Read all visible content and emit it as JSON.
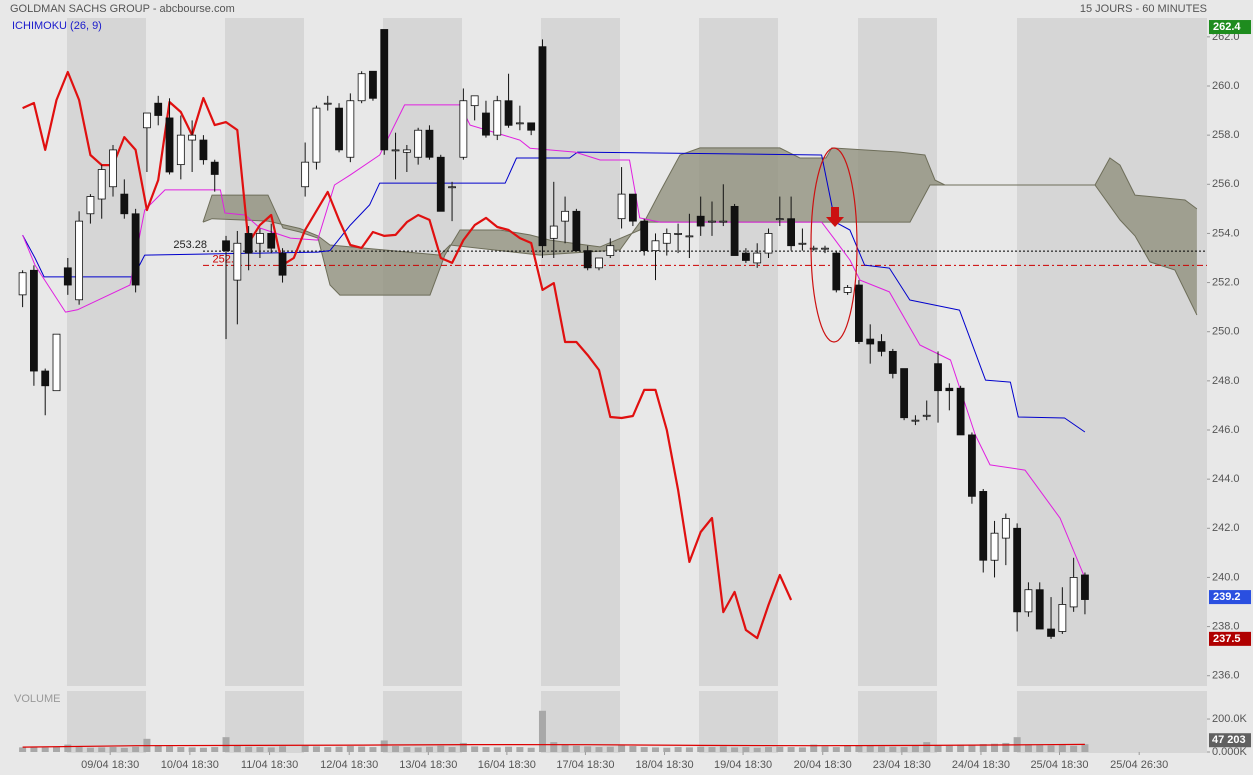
{
  "chart_data": {
    "type": "candlestick",
    "title": "GOLDMAN SACHS GROUP - abcbourse.com",
    "period": "15 JOURS - 60 MINUTES",
    "indicator": "ICHIMOKU (26, 9)",
    "candles": {
      "up_color": "#ffffff",
      "down_color": "#111111",
      "x": [
        0,
        1,
        2,
        3,
        4,
        5,
        6,
        7,
        8,
        9,
        10,
        11,
        12,
        13,
        14,
        15,
        16,
        17,
        18,
        19,
        20,
        21,
        22,
        23,
        25,
        26,
        27,
        28,
        29,
        30,
        31,
        32,
        33,
        34,
        35,
        36,
        37,
        38,
        39,
        40,
        41,
        42,
        43,
        44,
        45,
        46,
        47,
        48,
        49,
        50,
        51,
        52,
        53,
        54,
        55,
        56,
        57,
        58,
        59,
        60,
        61,
        62,
        63,
        64,
        65,
        66,
        67,
        68,
        69,
        70,
        71,
        72,
        73,
        74,
        75,
        76,
        77,
        78,
        79,
        80,
        81,
        82,
        83,
        84,
        85,
        86,
        87,
        88,
        89,
        90,
        91,
        92,
        93,
        94
      ],
      "open": [
        251.5,
        252.5,
        248.4,
        247.6,
        252.6,
        251.3,
        254.8,
        255.4,
        255.9,
        255.6,
        254.8,
        258.3,
        259.3,
        258.7,
        256.8,
        257.8,
        257.8,
        256.9,
        253.7,
        252.1,
        254,
        253.6,
        254,
        253.2,
        255.9,
        256.9,
        259.3,
        259.1,
        257.1,
        259.4,
        260.6,
        262.3,
        257.4,
        257.3,
        257.1,
        258.2,
        257.1,
        255.9,
        257.1,
        259.2,
        258.9,
        258,
        259.4,
        258.5,
        258.5,
        261.6,
        253.8,
        254.5,
        254.9,
        253.3,
        252.6,
        253.1,
        254.6,
        255.6,
        254.5,
        253.3,
        253.6,
        254,
        253.9,
        254.7,
        254.5,
        254.5,
        255.1,
        253.2,
        252.8,
        253.2,
        254.6,
        254.6,
        253.6,
        253.4,
        253.4,
        253.2,
        251.6,
        251.9,
        249.7,
        249.6,
        249.2,
        248.5,
        246.4,
        246.6,
        248.7,
        247.7,
        247.7,
        245.8,
        243.5,
        240.7,
        241.6,
        242,
        238.6,
        239.5,
        237.9,
        237.8,
        238.8,
        240.1
      ],
      "high": [
        252.5,
        252.7,
        248.5,
        249.9,
        253,
        254.9,
        255.6,
        256.8,
        257.6,
        256.2,
        255,
        258.9,
        259.6,
        259.5,
        258.8,
        258.6,
        258,
        257,
        253.9,
        254.1,
        254.3,
        254.2,
        254.4,
        253.4,
        257.7,
        259.2,
        259.6,
        259.3,
        259.7,
        260.6,
        260.6,
        262.3,
        258.1,
        257.6,
        258.3,
        258.4,
        257.2,
        256.1,
        259.9,
        259.6,
        259.4,
        259.6,
        260.5,
        259.2,
        258.5,
        261.9,
        256.1,
        255.5,
        255,
        253.5,
        252.8,
        253.8,
        256.7,
        255.6,
        254.6,
        254,
        254.2,
        254.4,
        254.8,
        255.5,
        255.3,
        256,
        255.2,
        253.4,
        253.6,
        254.2,
        255.5,
        255.5,
        254.2,
        253.5,
        253.5,
        253.3,
        251.9,
        252.1,
        250.3,
        249.9,
        249.3,
        248.5,
        246.6,
        247.2,
        249.2,
        247.9,
        247.8,
        245.9,
        243.6,
        242.3,
        242.6,
        242.2,
        239.8,
        239.8,
        239.2,
        239.6,
        240.8,
        240.2
      ],
      "low": [
        251,
        247.8,
        246.6,
        247.6,
        251.5,
        251.1,
        254.4,
        254.6,
        255.5,
        254.6,
        251.6,
        256.5,
        258.4,
        256.4,
        256.2,
        256.5,
        256.8,
        255.7,
        249.7,
        250.3,
        252.5,
        253,
        253.2,
        252,
        255.5,
        256.6,
        259,
        257.3,
        256.9,
        259.3,
        259.4,
        257.2,
        256.2,
        256.5,
        256.8,
        257,
        254.9,
        254.5,
        257,
        258.6,
        257.9,
        257.8,
        258.3,
        258.2,
        258,
        253,
        253,
        253.6,
        253.3,
        252.5,
        252.5,
        253,
        254.2,
        254.3,
        253.1,
        252.1,
        253.1,
        253.2,
        253,
        253.9,
        253.9,
        254.3,
        253.1,
        252.8,
        252.6,
        253,
        254.3,
        253.3,
        253.3,
        253.3,
        253.2,
        251.6,
        251.5,
        249.5,
        248.7,
        249,
        248.1,
        246.4,
        246.2,
        246.4,
        246.3,
        246.8,
        245.8,
        243,
        240.2,
        240,
        240.5,
        237.8,
        238.4,
        237.9,
        237.5,
        237.7,
        238.6,
        238.5
      ],
      "close": [
        252.4,
        248.4,
        247.8,
        249.9,
        251.9,
        254.5,
        255.5,
        256.6,
        257.4,
        254.8,
        251.9,
        258.9,
        258.8,
        256.5,
        258,
        258,
        257,
        256.4,
        253.3,
        253.6,
        253.2,
        254,
        253.4,
        252.3,
        256.9,
        259.1,
        259.3,
        257.4,
        259.4,
        260.5,
        259.5,
        257.4,
        257.4,
        257.4,
        258.2,
        257.1,
        254.9,
        255.9,
        259.4,
        259.6,
        258,
        259.4,
        258.4,
        258.5,
        258.2,
        253.5,
        254.3,
        254.9,
        253.3,
        252.6,
        253,
        253.5,
        255.6,
        254.5,
        253.3,
        253.7,
        254,
        254,
        253.9,
        254.3,
        254.5,
        254.5,
        253.1,
        252.9,
        253.2,
        254,
        254.6,
        253.5,
        253.6,
        253.4,
        253.4,
        251.7,
        251.8,
        249.6,
        249.5,
        249.2,
        248.3,
        246.5,
        246.4,
        246.6,
        247.6,
        247.6,
        245.8,
        243.3,
        240.7,
        241.8,
        242.4,
        238.6,
        239.5,
        237.9,
        237.6,
        238.9,
        240,
        239.1
      ]
    },
    "lines": [
      {
        "color": "#0000cc",
        "width": 1,
        "x": [
          0,
          1.1,
          1.9,
          9.8,
          10.8,
          26.1,
          27.2,
          29,
          30.7,
          31.6,
          42.7,
          43.7,
          48.4,
          49.1,
          70.7,
          71.9,
          73.2,
          74.5,
          76.7,
          78.5,
          82.9,
          85.2,
          87.4,
          88.1,
          92.2,
          94
        ],
        "values": [
          253.93,
          253.0,
          252.23,
          252.23,
          253.12,
          253.24,
          253.3,
          254.34,
          255.16,
          256.05,
          256.05,
          257.07,
          257.07,
          257.31,
          257.19,
          254.46,
          254.14,
          252.71,
          252.59,
          251.29,
          250.88,
          248.03,
          247.95,
          246.53,
          246.49,
          245.92
        ]
      },
      {
        "color": "#e020e0",
        "width": 1,
        "x": [
          0,
          1.1,
          3.8,
          4.9,
          9.5,
          10.8,
          12.6,
          17.5,
          17.9,
          19.7,
          21,
          23.7,
          26.1,
          27.6,
          29,
          31.6,
          33.8,
          38.7,
          39.6,
          44,
          44.9,
          48.9,
          51.1,
          53.7,
          54.6,
          56.4,
          70.7,
          71.9,
          73.2,
          74.1,
          76.7,
          79.4,
          82.1,
          84.3,
          85.6,
          88.7,
          91.8,
          94
        ],
        "values": [
          253.93,
          252.71,
          250.8,
          250.9,
          251.9,
          254.95,
          255.77,
          255.77,
          254.83,
          254.75,
          254.22,
          253.81,
          253.73,
          255.97,
          256.38,
          257.19,
          259.23,
          259.23,
          258.41,
          257.8,
          257.47,
          257.31,
          256.99,
          256.99,
          254.63,
          254.46,
          254.46,
          253.73,
          252.92,
          252.1,
          251.62,
          249.46,
          248.85,
          245.8,
          244.58,
          244.37,
          242.41,
          239.98
        ]
      },
      {
        "color": "#e01010",
        "width": 2.2,
        "x": [
          0,
          1,
          2,
          3,
          4,
          5,
          6,
          7,
          8,
          9,
          10,
          11,
          12,
          13,
          14,
          15,
          16,
          17,
          18,
          19,
          20,
          21,
          22,
          23,
          24,
          25,
          27,
          28,
          29,
          30,
          31,
          32,
          33,
          34,
          35,
          36,
          37,
          38,
          39,
          40,
          41,
          42,
          43,
          44,
          45,
          46,
          47,
          48,
          49,
          50,
          51,
          52,
          53,
          54,
          55,
          56,
          57,
          58,
          59,
          60,
          61,
          62,
          63,
          64,
          65,
          66,
          67,
          68
        ],
        "values": [
          259.1,
          259.31,
          257.4,
          259.43,
          260.57,
          259.43,
          257.19,
          256.78,
          256.78,
          257.92,
          257.4,
          254.95,
          256.17,
          259.35,
          258.94,
          258.0,
          259.51,
          258.41,
          258.53,
          258.21,
          253.61,
          254.34,
          254.75,
          252.71,
          253.0,
          254.14,
          255.69,
          254.55,
          253.53,
          253.41,
          254.06,
          253.9,
          253.94,
          254.46,
          254.75,
          254.55,
          253.0,
          252.8,
          253.73,
          254.34,
          254.63,
          254.26,
          254.14,
          253.81,
          253.61,
          251.7,
          251.98,
          249.58,
          249.58,
          249.05,
          248.44,
          246.53,
          246.49,
          246.57,
          247.63,
          247.63,
          246.0,
          243.56,
          240.63,
          241.85,
          242.42,
          238.59,
          239.41,
          237.86,
          237.53,
          238.88,
          240.1,
          239.08
        ]
      }
    ],
    "cloud": {
      "fill": "#8c8c78",
      "line_color": "#6e6e5a",
      "span_a": {
        "x": [
          15.96,
          16.76,
          21.71,
          23.04,
          24.54,
          26.14,
          27.2,
          28.08,
          36.05,
          37.37,
          38.7,
          42.24,
          44.89,
          46.66,
          51.09,
          54.63,
          56.4,
          58.17,
          59.94,
          67.0,
          68.78,
          71.08,
          71.6,
          77.63,
          79.84,
          80.73,
          81.61,
          94.89,
          96.21,
          97.1,
          98.43,
          101.08,
          102.85,
          103.91
        ],
        "values": [
          254.46,
          255.56,
          255.56,
          254.22,
          254.06,
          253.81,
          251.9,
          251.49,
          251.49,
          253.12,
          254.14,
          254.14,
          253.94,
          253.73,
          253.45,
          254.14,
          255.69,
          257.19,
          257.48,
          257.48,
          257.07,
          257.07,
          257.48,
          257.31,
          257.19,
          256.17,
          255.97,
          255.97,
          257.07,
          256.78,
          255.56,
          255.44,
          255.36,
          255.0
        ]
      },
      "span_b": {
        "x": [
          15.96,
          16.76,
          21.71,
          24.54,
          26.14,
          27.2,
          36.93,
          37.82,
          45.78,
          52.86,
          54.63,
          78.52,
          80.29,
          94.89,
          97.1,
          98.43,
          99.75,
          101.96,
          103.91
        ],
        "values": [
          254.46,
          254.6,
          254.5,
          254.2,
          253.9,
          253.53,
          253.12,
          253.53,
          253.12,
          253.33,
          254.46,
          254.46,
          255.97,
          255.97,
          254.55,
          253.9,
          252.84,
          252.51,
          250.68
        ]
      }
    },
    "levels": [
      {
        "value": 253.28,
        "color": "#000000",
        "dash": "2,2"
      },
      {
        "value": 252.7,
        "color": "#cc0000",
        "dash": "6,3,2,3"
      }
    ],
    "price_tags": [
      {
        "value": 262.4,
        "color": "#1e8c1e"
      },
      {
        "value": 239.2,
        "color": "#2a4fe0"
      },
      {
        "value": 237.5,
        "color": "#b00000"
      }
    ],
    "xlim": [
      -2,
      104.8
    ],
    "xticks": [
      {
        "value": 7.75,
        "label": "09/04 18:30"
      },
      {
        "value": 14.8,
        "label": "10/04 18:30"
      },
      {
        "value": 21.85,
        "label": "11/04 18:30"
      },
      {
        "value": 28.9,
        "label": "12/04 18:30"
      },
      {
        "value": 35.9,
        "label": "13/04 18:30"
      },
      {
        "value": 42.85,
        "label": "16/04 18:30"
      },
      {
        "value": 49.8,
        "label": "17/04 18:30"
      },
      {
        "value": 56.8,
        "label": "18/04 18:30"
      },
      {
        "value": 63.75,
        "label": "19/04 18:30"
      },
      {
        "value": 70.8,
        "label": "20/04 18:30"
      },
      {
        "value": 77.8,
        "label": "23/04 18:30"
      },
      {
        "value": 84.8,
        "label": "24/04 18:30"
      },
      {
        "value": 91.75,
        "label": "25/04 18:30"
      },
      {
        "value": 98.8,
        "label": "25/04 26:30"
      }
    ],
    "ylim": [
      235.5,
      263.5
    ],
    "yticks": [
      {
        "value": 236,
        "label": "236.0"
      },
      {
        "value": 238,
        "label": "238.0"
      },
      {
        "value": 240,
        "label": "240.0"
      },
      {
        "value": 242,
        "label": "242.0"
      },
      {
        "value": 244,
        "label": "244.0"
      },
      {
        "value": 246,
        "label": "246.0"
      },
      {
        "value": 248,
        "label": "248.0"
      },
      {
        "value": 250,
        "label": "250.0"
      },
      {
        "value": 252,
        "label": "252.0"
      },
      {
        "value": 254,
        "label": "254.0"
      },
      {
        "value": 256,
        "label": "256.0"
      },
      {
        "value": 258,
        "label": "258.0"
      },
      {
        "value": 260,
        "label": "260.0"
      },
      {
        "value": 262,
        "label": "262.0"
      }
    ],
    "volume": {
      "title": "VOLUME",
      "color": "#a8a8a8",
      "values": [
        28000,
        30000,
        27000,
        32000,
        45000,
        30000,
        26000,
        28000,
        30000,
        25000,
        32000,
        80000,
        40000,
        35000,
        30000,
        28000,
        26000,
        30000,
        90000,
        40000,
        32000,
        30000,
        28000,
        35000,
        38000,
        34000,
        30000,
        32000,
        36000,
        33000,
        30000,
        70000,
        36000,
        30000,
        28000,
        32000,
        38000,
        30000,
        55000,
        34000,
        30000,
        28000,
        32000,
        30000,
        26000,
        250000,
        60000,
        45000,
        38000,
        34000,
        30000,
        32000,
        40000,
        36000,
        30000,
        28000,
        26000,
        30000,
        28000,
        32000,
        30000,
        34000,
        28000,
        30000,
        26000,
        30000,
        32000,
        30000,
        28000,
        45000,
        34000,
        30000,
        36000,
        40000,
        38000,
        34000,
        32000,
        30000,
        36000,
        60000,
        40000,
        38000,
        45000,
        42000,
        48000,
        50000,
        55000,
        90000,
        46000,
        42000,
        40000,
        44000,
        38000,
        47203
      ],
      "last_label": "47 203",
      "last_color": "#606060",
      "ylim": [
        0,
        370000
      ],
      "yticks": [
        {
          "value": 0,
          "label": "0.000K"
        },
        {
          "value": 200000,
          "label": "200.0K"
        }
      ],
      "ma": {
        "color": "#dd0000",
        "x": [
          0,
          10,
          20,
          30,
          40,
          50,
          60,
          70,
          80,
          90,
          94
        ],
        "values": [
          30000,
          38000,
          40000,
          42000,
          45000,
          44000,
          40000,
          38000,
          40000,
          44000,
          46000
        ]
      }
    }
  }
}
